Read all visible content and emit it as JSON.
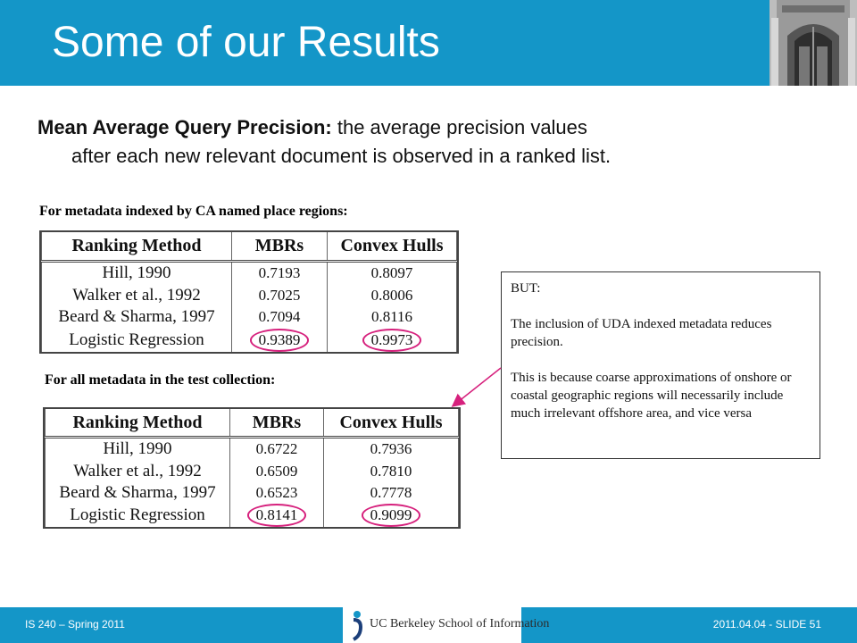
{
  "header": {
    "title": "Some of our Results"
  },
  "lead": {
    "bold": "Mean Average Query Precision:",
    "line1": " the average precision values",
    "line2": "after each new relevant document is observed in a ranked list."
  },
  "table1": {
    "caption": "For metadata indexed by CA named place regions:",
    "headers": [
      "Ranking Method",
      "MBRs",
      "Convex Hulls"
    ],
    "rows": [
      [
        "Hill, 1990",
        "0.7193",
        "0.8097"
      ],
      [
        "Walker et al., 1992",
        "0.7025",
        "0.8006"
      ],
      [
        "Beard & Sharma, 1997",
        "0.7094",
        "0.8116"
      ],
      [
        "Logistic Regression",
        "0.9389",
        "0.9973"
      ]
    ]
  },
  "table2": {
    "caption": "For all metadata in the test collection:",
    "headers": [
      "Ranking Method",
      "MBRs",
      "Convex Hulls"
    ],
    "rows": [
      [
        "Hill, 1990",
        "0.6722",
        "0.7936"
      ],
      [
        "Walker et al., 1992",
        "0.6509",
        "0.7810"
      ],
      [
        "Beard & Sharma, 1997",
        "0.6523",
        "0.7778"
      ],
      [
        "Logistic Regression",
        "0.8141",
        "0.9099"
      ]
    ]
  },
  "callout": {
    "p1": "BUT:",
    "p2": "The inclusion of UDA indexed metadata reduces precision.",
    "p3": "This is because coarse approximations of onshore or coastal geographic regions will necessarily include much irrelevant offshore area, and vice versa"
  },
  "footer": {
    "left": "IS 240 – Spring 2011",
    "right": "2011.04.04 - SLIDE 51",
    "logo_text": "UC Berkeley School of Information"
  },
  "colors": {
    "brand": "#1496c8",
    "highlight": "#d6217d"
  },
  "icons": {
    "header_photo": "building-photo",
    "logo": "ischool-logo-icon"
  }
}
